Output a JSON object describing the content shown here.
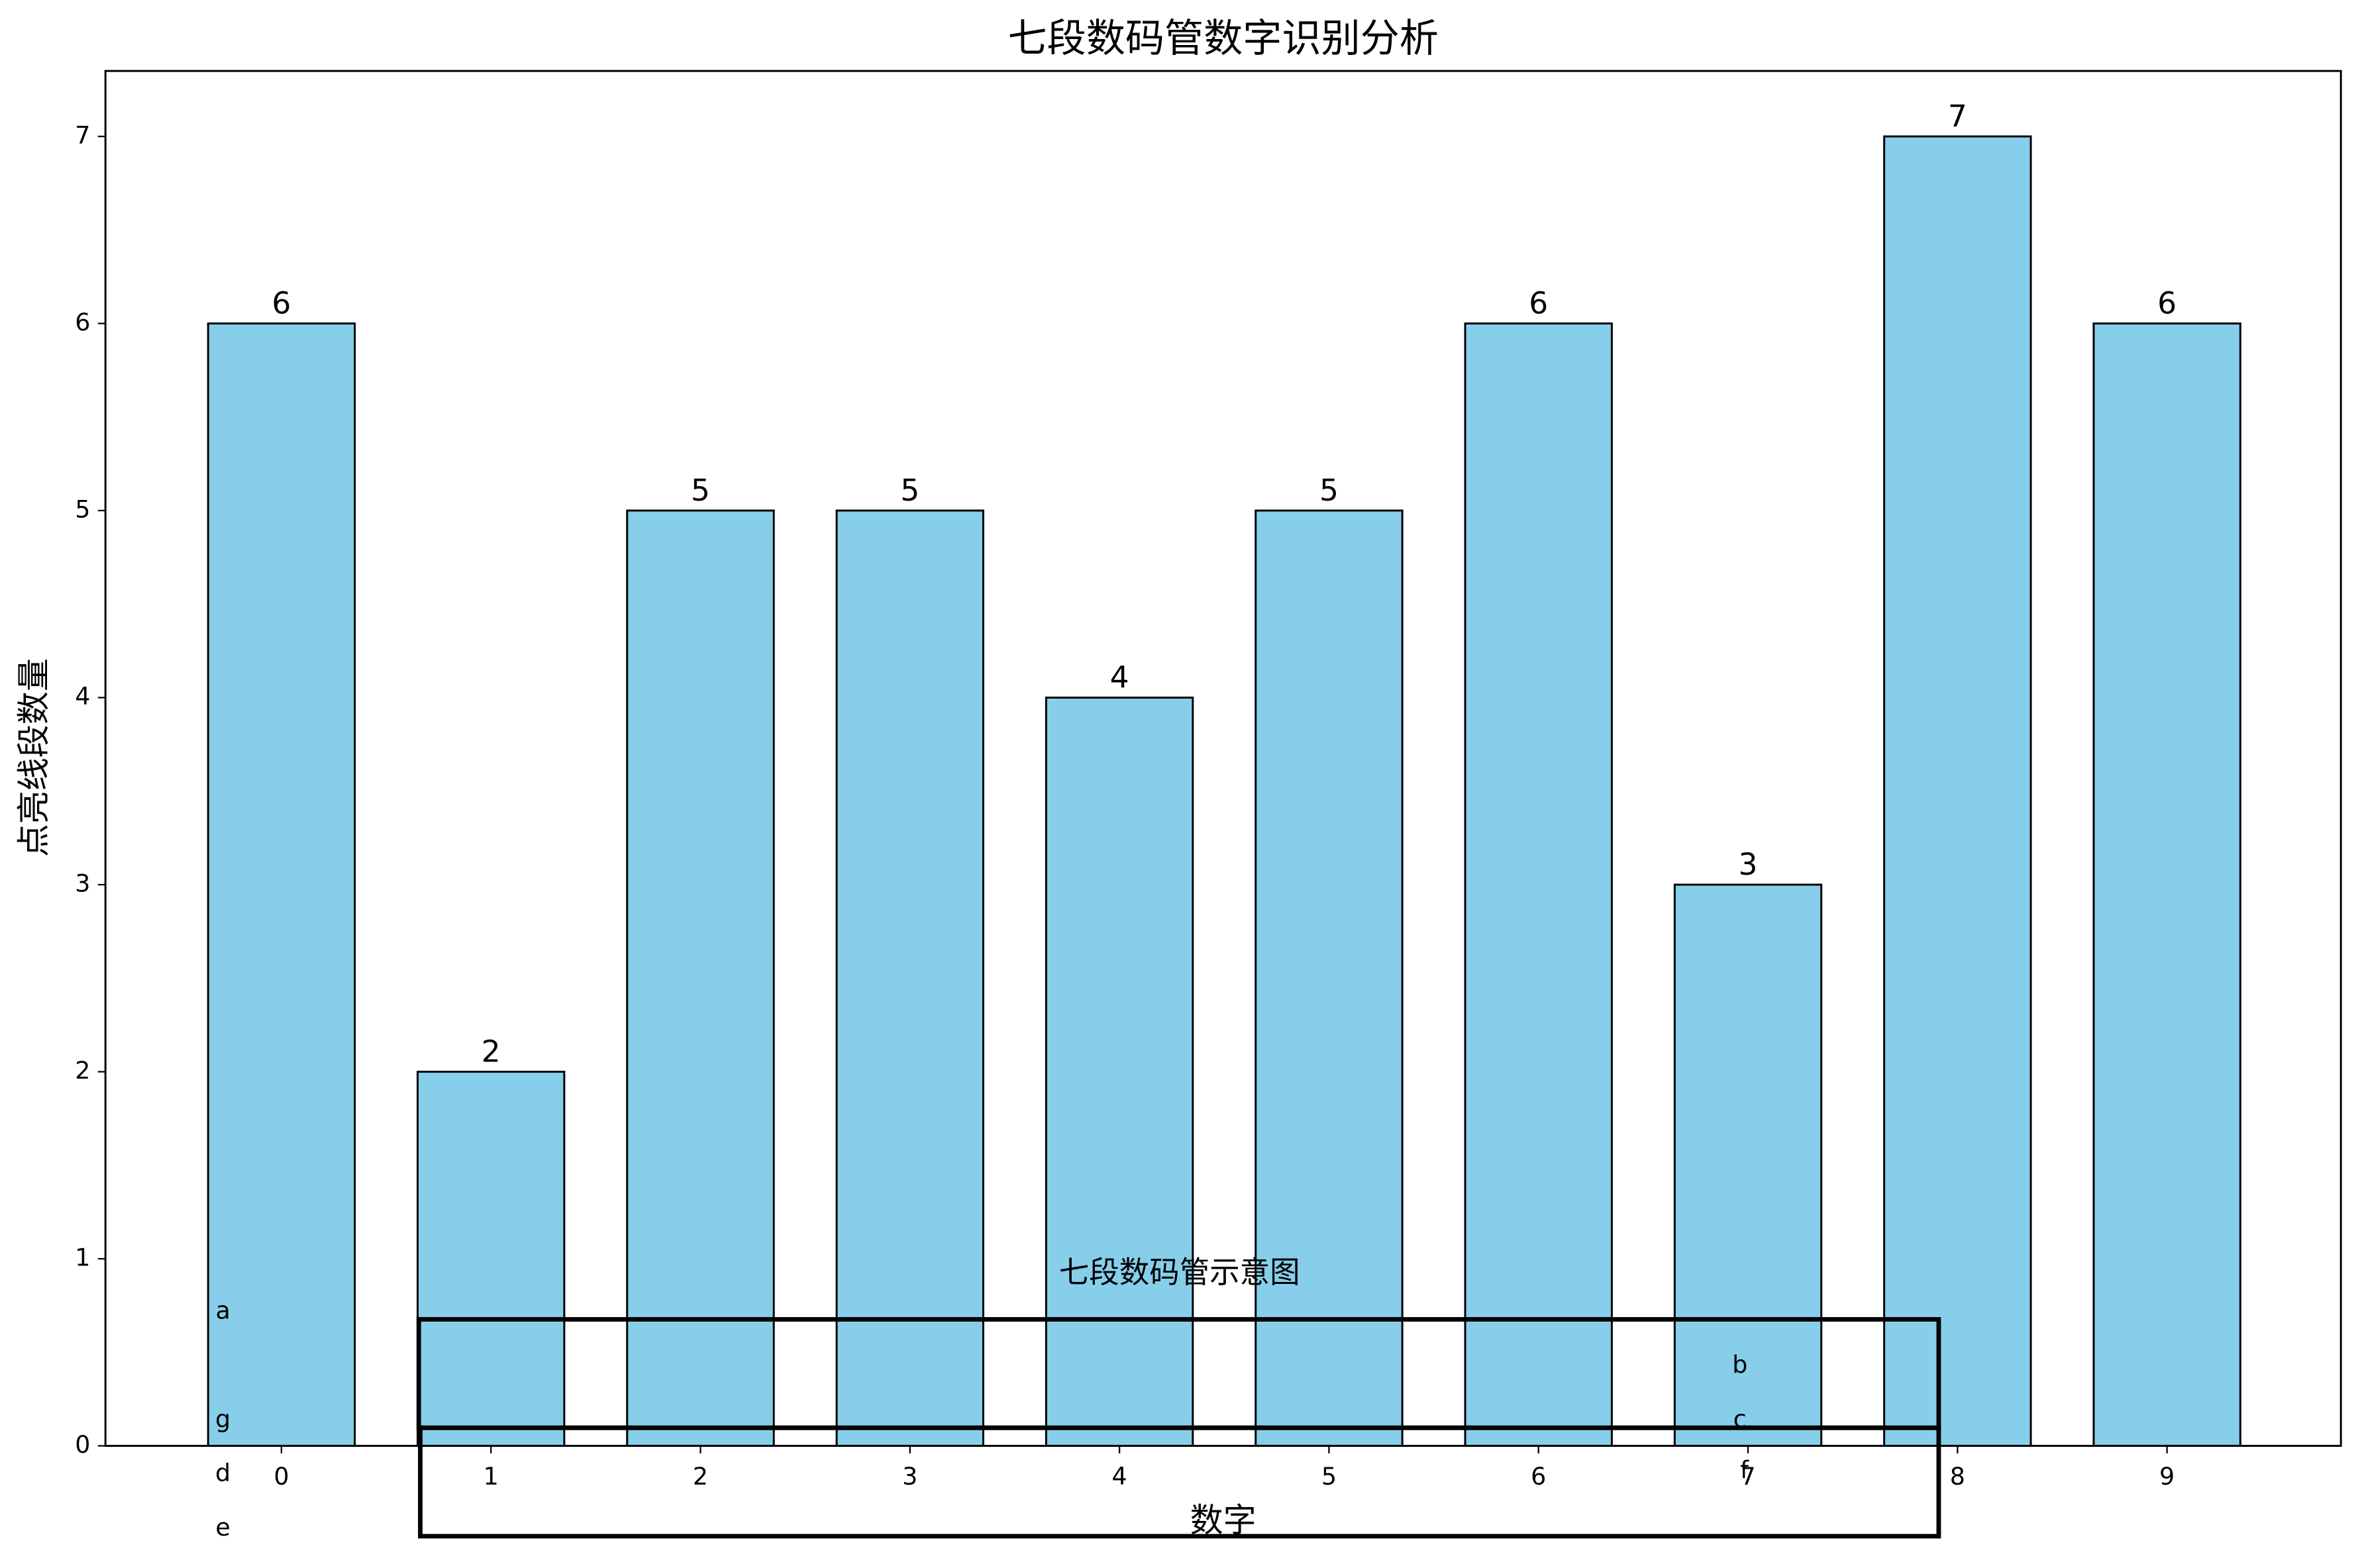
{
  "chart_data": {
    "type": "bar",
    "title": "七段数码管数字识别分析",
    "x_label": "数字",
    "y_label": "点亮线段数量",
    "categories": [
      "0",
      "1",
      "2",
      "3",
      "4",
      "5",
      "6",
      "7",
      "8",
      "9"
    ],
    "values": [
      6,
      2,
      5,
      5,
      4,
      5,
      6,
      3,
      7,
      6
    ],
    "color": "#87ceeb",
    "edge_color": "#000000",
    "ylim": [
      0,
      7.35
    ],
    "yticks": [
      0,
      1,
      2,
      3,
      4,
      5,
      6,
      7
    ],
    "grid": false,
    "annotations": {
      "diagram_title": "七段数码管示意图",
      "segments": [
        "a",
        "b",
        "c",
        "d",
        "e",
        "f",
        "g"
      ]
    }
  }
}
